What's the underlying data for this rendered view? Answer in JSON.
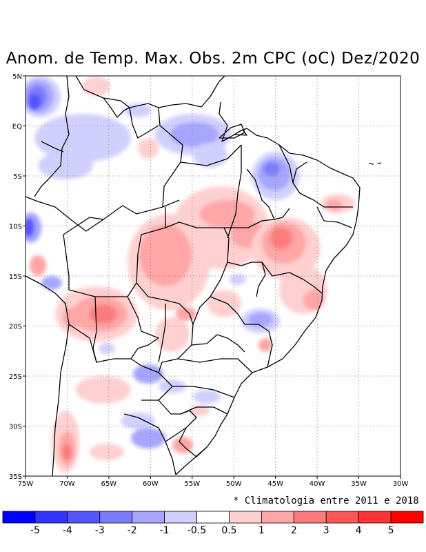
{
  "title": "Anom. de Temp. Max. Obs. 2m CPC (oC) Dez/2020",
  "lat_ticks": [
    "5N",
    "EQ",
    "5S",
    "10S",
    "15S",
    "20S",
    "25S",
    "30S",
    "35S"
  ],
  "lon_ticks": [
    "75W",
    "70W",
    "65W",
    "60W",
    "55W",
    "50W",
    "45W",
    "40W",
    "35W",
    "30W"
  ],
  "footnote": "* Climatologia entre 2011 e 2018",
  "colorbar": {
    "colors": [
      "#0000ff",
      "#3333ff",
      "#5555ff",
      "#7b7bff",
      "#a6a6ff",
      "#d0d0ff",
      "#ffffff",
      "#ffd0d0",
      "#ffa6a6",
      "#ff7b7b",
      "#ff5555",
      "#ff3333",
      "#ff0000"
    ],
    "labels": [
      "-5",
      "-4",
      "-3",
      "-2",
      "-1",
      "-0.5",
      "0.5",
      "1",
      "2",
      "3",
      "4",
      "5"
    ]
  }
}
